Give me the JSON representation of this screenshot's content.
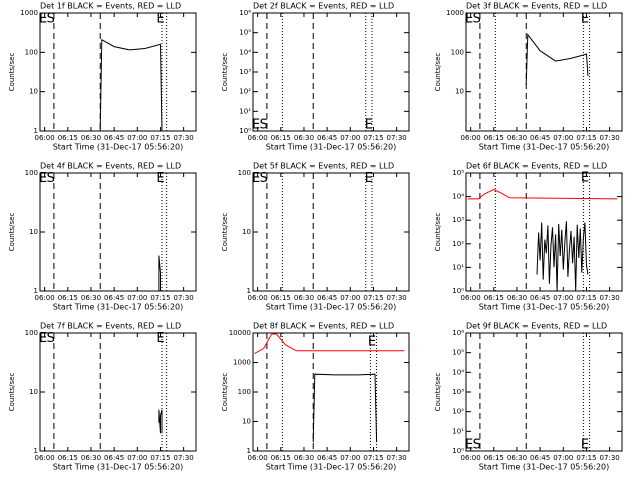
{
  "chart_data": [
    {
      "type": "line",
      "title": "Det 1f BLACK = Events, RED = LLD",
      "x_label": "Start Time (31-Dec-17 05:56:20)",
      "y_label": "Counts/sec",
      "log_y": true,
      "xlim": [
        "05:57",
        "07:38"
      ],
      "xticks": [
        "06:00",
        "06:15",
        "06:30",
        "06:45",
        "07:00",
        "07:15",
        "07:30"
      ],
      "ylim": [
        1,
        1000
      ],
      "yticks": [
        1,
        10,
        100,
        1000
      ],
      "vlines": [
        {
          "x": "06:06",
          "style": "dashed"
        },
        {
          "x": "06:36",
          "style": "dashed"
        },
        {
          "x": "07:16",
          "style": "dotted"
        },
        {
          "x": "07:19",
          "style": "dotted"
        }
      ],
      "annotations": [
        {
          "text": "E",
          "x": "05:59",
          "y": 700
        },
        {
          "text": "S",
          "x": "06:04",
          "y": 700
        },
        {
          "text": "E",
          "x": "07:15",
          "y": 700
        }
      ],
      "series": [
        {
          "color": "#000000",
          "x": [
            "06:36",
            "06:37",
            "06:45",
            "06:55",
            "07:05",
            "07:15",
            "07:16"
          ],
          "values": [
            1,
            210,
            140,
            115,
            125,
            160,
            1
          ]
        }
      ]
    },
    {
      "type": "line",
      "title": "Det 2f BLACK = Events, RED = LLD",
      "x_label": "Start Time (31-Dec-17 05:56:20)",
      "y_label": "Counts/sec",
      "log_y": true,
      "xlim": [
        "05:57",
        "07:38"
      ],
      "xticks": [
        "06:00",
        "06:15",
        "06:30",
        "06:45",
        "07:00",
        "07:15",
        "07:30"
      ],
      "ylim": [
        1,
        1000000
      ],
      "yticks": [
        {
          "value": 1,
          "label": "10⁰"
        },
        {
          "value": 10,
          "label": "10¹"
        },
        {
          "value": 100,
          "label": "10²"
        },
        {
          "value": 1000,
          "label": "10³"
        },
        {
          "value": 10000,
          "label": "10⁴"
        },
        {
          "value": 100000,
          "label": "10⁵"
        },
        {
          "value": 1000000,
          "label": "10⁶"
        }
      ],
      "vlines": [
        {
          "x": "06:06",
          "style": "dashed"
        },
        {
          "x": "06:36",
          "style": "dashed"
        },
        {
          "x": "06:16",
          "style": "dotted"
        },
        {
          "x": "07:10",
          "style": "dotted"
        },
        {
          "x": "07:14",
          "style": "dotted"
        }
      ],
      "annotations": [
        {
          "text": "E",
          "x": "05:59",
          "y": 2
        },
        {
          "text": "S",
          "x": "06:04",
          "y": 2
        },
        {
          "text": "E",
          "x": "07:12",
          "y": 2
        }
      ],
      "series": []
    },
    {
      "type": "line",
      "title": "Det 3f BLACK = Events, RED = LLD",
      "x_label": "Start Time (31-Dec-17 05:56:20)",
      "y_label": "Counts/sec",
      "log_y": true,
      "xlim": [
        "05:57",
        "07:38"
      ],
      "xticks": [
        "06:00",
        "06:15",
        "06:30",
        "06:45",
        "07:00",
        "07:15",
        "07:30"
      ],
      "ylim": [
        1,
        1000
      ],
      "yticks": [
        10,
        100,
        1000
      ],
      "vlines": [
        {
          "x": "06:06",
          "style": "dashed"
        },
        {
          "x": "06:36",
          "style": "dashed"
        },
        {
          "x": "06:16",
          "style": "dotted"
        },
        {
          "x": "07:13",
          "style": "dotted"
        },
        {
          "x": "07:17",
          "style": "dotted"
        }
      ],
      "annotations": [
        {
          "text": "E",
          "x": "05:59",
          "y": 700
        },
        {
          "text": "S",
          "x": "06:04",
          "y": 700
        },
        {
          "text": "E",
          "x": "07:14",
          "y": 700
        }
      ],
      "series": [
        {
          "color": "#000000",
          "x": [
            "06:36",
            "06:37",
            "06:45",
            "06:55",
            "07:05",
            "07:15",
            "07:16"
          ],
          "values": [
            15,
            280,
            110,
            60,
            70,
            90,
            25
          ]
        }
      ]
    },
    {
      "type": "line",
      "title": "Det 4f BLACK = Events, RED = LLD",
      "x_label": "Start Time (31-Dec-17 05:56:20)",
      "y_label": "Counts/sec",
      "log_y": true,
      "xlim": [
        "05:57",
        "07:38"
      ],
      "xticks": [
        "06:00",
        "06:15",
        "06:30",
        "06:45",
        "07:00",
        "07:15",
        "07:30"
      ],
      "ylim": [
        1,
        100
      ],
      "yticks": [
        1,
        10,
        100
      ],
      "vlines": [
        {
          "x": "06:06",
          "style": "dashed"
        },
        {
          "x": "06:36",
          "style": "dashed"
        },
        {
          "x": "07:16",
          "style": "dotted"
        },
        {
          "x": "07:19",
          "style": "dotted"
        }
      ],
      "annotations": [
        {
          "text": "E",
          "x": "05:59",
          "y": 80
        },
        {
          "text": "S",
          "x": "06:04",
          "y": 80
        },
        {
          "text": "E",
          "x": "07:15",
          "y": 80
        }
      ],
      "series": [
        {
          "color": "#000000",
          "x": [
            "07:14",
            "07:14",
            "07:15",
            "07:15"
          ],
          "values": [
            1,
            4,
            2,
            1
          ]
        }
      ]
    },
    {
      "type": "line",
      "title": "Det 5f BLACK = Events, RED = LLD",
      "x_label": "Start Time (31-Dec-17 05:56:20)",
      "y_label": "Counts/sec",
      "log_y": true,
      "xlim": [
        "05:57",
        "07:38"
      ],
      "xticks": [
        "06:00",
        "06:15",
        "06:30",
        "06:45",
        "07:00",
        "07:15",
        "07:30"
      ],
      "ylim": [
        1,
        100
      ],
      "yticks": [
        1,
        10,
        100
      ],
      "vlines": [
        {
          "x": "06:06",
          "style": "dashed"
        },
        {
          "x": "06:36",
          "style": "dashed"
        },
        {
          "x": "06:16",
          "style": "dotted"
        },
        {
          "x": "07:10",
          "style": "dotted"
        },
        {
          "x": "07:14",
          "style": "dotted"
        }
      ],
      "annotations": [
        {
          "text": "E",
          "x": "05:59",
          "y": 80
        },
        {
          "text": "S",
          "x": "06:04",
          "y": 80
        },
        {
          "text": "E",
          "x": "07:12",
          "y": 80
        }
      ],
      "series": []
    },
    {
      "type": "line",
      "title": "Det 6f BLACK = Events, RED = LLD",
      "x_label": "Start Time (31-Dec-17 05:56:20)",
      "y_label": "Counts/sec",
      "log_y": true,
      "xlim": [
        "05:57",
        "07:38"
      ],
      "xticks": [
        "06:00",
        "06:15",
        "06:30",
        "06:45",
        "07:00",
        "07:15",
        "07:30"
      ],
      "ylim": [
        1,
        100000
      ],
      "yticks": [
        {
          "value": 1,
          "label": "10⁰"
        },
        {
          "value": 10,
          "label": "10¹"
        },
        {
          "value": 100,
          "label": "10²"
        },
        {
          "value": 1000,
          "label": "10³"
        },
        {
          "value": 10000,
          "label": "10⁴"
        },
        {
          "value": 100000,
          "label": "10⁵"
        }
      ],
      "vlines": [
        {
          "x": "06:06",
          "style": "dashed"
        },
        {
          "x": "06:36",
          "style": "dashed"
        },
        {
          "x": "06:16",
          "style": "dotted"
        },
        {
          "x": "07:13",
          "style": "dotted"
        },
        {
          "x": "07:17",
          "style": "dotted"
        }
      ],
      "annotations": [
        {
          "text": "E",
          "x": "07:14",
          "y": 60000
        }
      ],
      "series": [
        {
          "color": "#ff0000",
          "x": [
            "05:58",
            "06:05",
            "06:09",
            "06:15",
            "06:20",
            "06:25",
            "07:35"
          ],
          "values": [
            8000,
            8000,
            13000,
            20000,
            14000,
            9000,
            8000
          ]
        },
        {
          "color": "#000000",
          "x": [
            "06:43",
            "06:44",
            "06:45",
            "06:46",
            "06:47",
            "06:48",
            "06:49",
            "06:50",
            "06:51",
            "06:52",
            "06:53",
            "06:54",
            "06:55",
            "06:56",
            "06:57",
            "06:58",
            "06:59",
            "07:00",
            "07:01",
            "07:02",
            "07:03",
            "07:04",
            "07:05",
            "07:06",
            "07:07",
            "07:08",
            "07:09",
            "07:10",
            "07:11",
            "07:12",
            "07:13",
            "07:14",
            "07:15",
            "07:16"
          ],
          "values": [
            5,
            300,
            20,
            800,
            3,
            150,
            40,
            600,
            2,
            90,
            500,
            10,
            250,
            1,
            700,
            30,
            400,
            8,
            120,
            900,
            4,
            60,
            350,
            15,
            200,
            1,
            650,
            25,
            450,
            6,
            180,
            800,
            12,
            5
          ]
        }
      ]
    },
    {
      "type": "line",
      "title": "Det 7f BLACK = Events, RED = LLD",
      "x_label": "Start Time (31-Dec-17 05:56:20)",
      "y_label": "Counts/sec",
      "log_y": true,
      "xlim": [
        "05:57",
        "07:38"
      ],
      "xticks": [
        "06:00",
        "06:15",
        "06:30",
        "06:45",
        "07:00",
        "07:15",
        "07:30"
      ],
      "ylim": [
        1,
        100
      ],
      "yticks": [
        1,
        10,
        100
      ],
      "vlines": [
        {
          "x": "06:06",
          "style": "dashed"
        },
        {
          "x": "06:36",
          "style": "dashed"
        },
        {
          "x": "07:16",
          "style": "dotted"
        },
        {
          "x": "07:19",
          "style": "dotted"
        }
      ],
      "annotations": [
        {
          "text": "E",
          "x": "05:59",
          "y": 80
        },
        {
          "text": "S",
          "x": "06:04",
          "y": 80
        },
        {
          "text": "E",
          "x": "07:15",
          "y": 80
        }
      ],
      "series": [
        {
          "color": "#000000",
          "x": [
            "07:14",
            "07:14",
            "07:15",
            "07:15",
            "07:16",
            "07:16"
          ],
          "values": [
            3,
            5,
            2,
            4,
            5,
            2
          ]
        }
      ]
    },
    {
      "type": "line",
      "title": "Det 8f BLACK = Events, RED = LLD",
      "x_label": "Start Time (31-Dec-17 05:56:20)",
      "y_label": "Counts/sec",
      "log_y": true,
      "xlim": [
        "05:57",
        "07:38"
      ],
      "xticks": [
        "06:00",
        "06:15",
        "06:30",
        "06:45",
        "07:00",
        "07:15",
        "07:30"
      ],
      "ylim": [
        1,
        10000
      ],
      "yticks": [
        1,
        10,
        100,
        1000,
        10000
      ],
      "vlines": [
        {
          "x": "06:06",
          "style": "dashed"
        },
        {
          "x": "06:36",
          "style": "dashed"
        },
        {
          "x": "06:16",
          "style": "dotted"
        },
        {
          "x": "07:13",
          "style": "dotted"
        },
        {
          "x": "07:17",
          "style": "dotted"
        }
      ],
      "annotations": [
        {
          "text": "E",
          "x": "07:14",
          "y": 5000
        }
      ],
      "series": [
        {
          "color": "#ff0000",
          "x": [
            "05:58",
            "06:04",
            "06:09",
            "06:12",
            "06:18",
            "06:25",
            "07:35"
          ],
          "values": [
            2000,
            3000,
            9000,
            9500,
            4000,
            2500,
            2500
          ]
        },
        {
          "color": "#000000",
          "x": [
            "06:36",
            "06:37",
            "06:50",
            "07:05",
            "07:16",
            "07:17"
          ],
          "values": [
            2,
            400,
            380,
            380,
            400,
            2
          ]
        }
      ]
    },
    {
      "type": "line",
      "title": "Det 9f BLACK = Events, RED = LLD",
      "x_label": "Start Time (31-Dec-17 05:56:20)",
      "y_label": "Counts/sec",
      "log_y": true,
      "xlim": [
        "05:57",
        "07:38"
      ],
      "xticks": [
        "06:00",
        "06:15",
        "06:30",
        "06:45",
        "07:00",
        "07:15",
        "07:30"
      ],
      "ylim": [
        1,
        1000000
      ],
      "yticks": [
        {
          "value": 1,
          "label": "10⁰"
        },
        {
          "value": 10,
          "label": "10¹"
        },
        {
          "value": 100,
          "label": "10²"
        },
        {
          "value": 1000,
          "label": "10³"
        },
        {
          "value": 10000,
          "label": "10⁴"
        },
        {
          "value": 100000,
          "label": "10⁵"
        },
        {
          "value": 1000000,
          "label": "10⁶"
        }
      ],
      "vlines": [
        {
          "x": "06:06",
          "style": "dashed"
        },
        {
          "x": "06:36",
          "style": "dashed"
        },
        {
          "x": "07:13",
          "style": "dotted"
        },
        {
          "x": "07:17",
          "style": "dotted"
        }
      ],
      "annotations": [
        {
          "text": "E",
          "x": "05:59",
          "y": 2
        },
        {
          "text": "S",
          "x": "06:04",
          "y": 2
        },
        {
          "text": "E",
          "x": "07:14",
          "y": 2
        }
      ],
      "series": []
    }
  ]
}
